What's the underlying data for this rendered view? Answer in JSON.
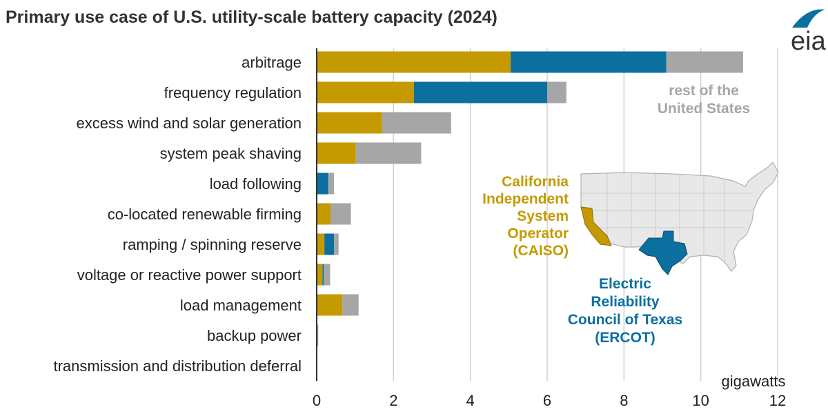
{
  "chart_data": {
    "type": "bar",
    "orientation": "horizontal",
    "stacked": true,
    "title": "Primary use case of U.S. utility-scale battery capacity (2024)",
    "unit_label": "gigawatts",
    "xlim": [
      0,
      12
    ],
    "xticks": [
      0,
      2,
      4,
      6,
      8,
      10,
      12
    ],
    "grid": "vertical",
    "categories": [
      "arbitrage",
      "frequency regulation",
      "excess wind and solar generation",
      "system peak shaving",
      "load following",
      "co-located renewable firming",
      "ramping / spinning reserve",
      "voltage or reactive power support",
      "load management",
      "backup power",
      "transmission and distribution deferral"
    ],
    "series": [
      {
        "name": "California Independent System Operator (CAISO)",
        "color": "#c49a00",
        "values": [
          5.05,
          2.53,
          1.7,
          1.02,
          0.0,
          0.36,
          0.2,
          0.15,
          0.67,
          0.0,
          0.0
        ]
      },
      {
        "name": "Electric Reliability Council of Texas (ERCOT)",
        "color": "#0b6fa0",
        "values": [
          4.05,
          3.47,
          0.0,
          0.0,
          0.3,
          0.0,
          0.25,
          0.03,
          0.0,
          0.0,
          0.0
        ]
      },
      {
        "name": "rest of the United States",
        "color": "#a6a6a6",
        "values": [
          2.0,
          0.5,
          1.8,
          1.7,
          0.15,
          0.53,
          0.12,
          0.17,
          0.42,
          0.04,
          0.01
        ]
      }
    ],
    "annotations": {
      "rest": [
        "rest of the",
        "United States"
      ],
      "caiso": [
        "California",
        "Independent",
        "System",
        "Operator",
        "(CAISO)"
      ],
      "ercot": [
        "Electric",
        "Reliability",
        "Council of Texas",
        "(ERCOT)"
      ]
    }
  },
  "logo": {
    "text": "eia",
    "accent_color": "#0b6fa0"
  }
}
